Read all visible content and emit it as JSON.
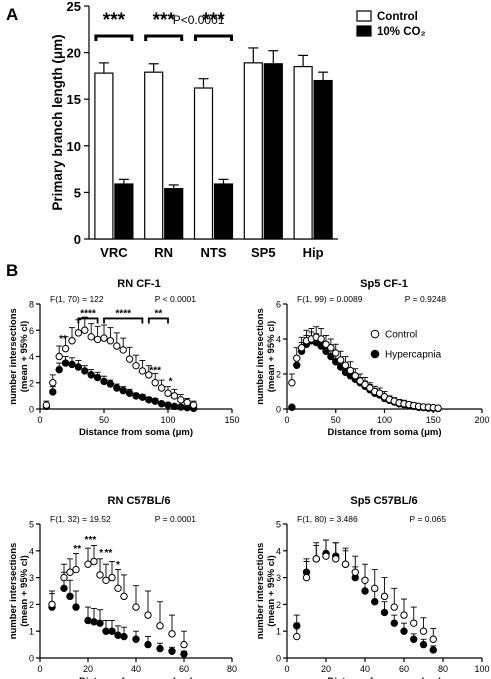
{
  "panels": {
    "a": "A",
    "b": "B"
  },
  "chart_data": [
    {
      "type": "bar",
      "id": "A",
      "ylabel": "Primary branch length (μm)",
      "ylim": [
        0,
        25
      ],
      "yticks": [
        0,
        5,
        10,
        15,
        20,
        25
      ],
      "categories": [
        "VRC",
        "RN",
        "NTS",
        "SP5",
        "Hip"
      ],
      "series": [
        {
          "name": "Control",
          "color": "#ffffff",
          "values": [
            17.8,
            17.9,
            16.2,
            18.9,
            18.5
          ],
          "errors": [
            1.1,
            0.9,
            1.0,
            1.6,
            1.2
          ]
        },
        {
          "name": "10% CO₂",
          "color": "#000000",
          "values": [
            5.9,
            5.4,
            5.9,
            18.8,
            17.0
          ],
          "errors": [
            0.5,
            0.4,
            0.5,
            1.4,
            0.9
          ]
        }
      ],
      "annotations": [
        {
          "text": "P<0.0001"
        },
        {
          "text": "***",
          "group": 0
        },
        {
          "text": "***",
          "group": 1
        },
        {
          "text": "***",
          "group": 2
        }
      ]
    },
    {
      "type": "scatter",
      "id": "rn_cf1",
      "title": "RN CF-1",
      "xlabel": "Distance from soma (μm)",
      "ylabel": [
        "number intersections",
        "(mean + 95% cl)"
      ],
      "xlim": [
        0,
        150
      ],
      "ylim": [
        0,
        8
      ],
      "xticks": [
        0,
        50,
        100,
        150
      ],
      "yticks": [
        0,
        2,
        4,
        6,
        8
      ],
      "stat_left": "F(1, 70) = 122",
      "stat_right": "P < 0.0001",
      "x": [
        5,
        10,
        15,
        20,
        25,
        30,
        35,
        40,
        45,
        50,
        55,
        60,
        65,
        70,
        75,
        80,
        85,
        90,
        95,
        100,
        105,
        110,
        115,
        120
      ],
      "series": [
        {
          "name": "Control",
          "values": [
            0.3,
            2.0,
            4.0,
            4.6,
            5.2,
            5.8,
            6.0,
            5.5,
            5.3,
            5.4,
            5.2,
            4.8,
            4.5,
            3.8,
            3.3,
            2.9,
            2.6,
            2.0,
            1.6,
            1.2,
            1.0,
            0.7,
            0.5,
            0.3
          ],
          "err": [
            0.3,
            0.6,
            0.8,
            0.9,
            1.0,
            1.0,
            1.0,
            1.0,
            1.0,
            1.0,
            1.0,
            1.0,
            0.9,
            0.9,
            0.8,
            0.8,
            0.7,
            0.7,
            0.6,
            0.5,
            0.5,
            0.4,
            0.3,
            0.3
          ]
        },
        {
          "name": "Hypercapnia",
          "values": [
            0.2,
            1.3,
            3.0,
            3.5,
            3.4,
            3.2,
            2.9,
            2.6,
            2.4,
            2.1,
            1.9,
            1.6,
            1.4,
            1.2,
            1.0,
            0.9,
            0.7,
            0.6,
            0.4,
            0.3,
            0.2,
            0.15,
            0.1,
            0.05
          ],
          "err": [
            0.2,
            0.4,
            0.5,
            0.5,
            0.5,
            0.5,
            0.4,
            0.4,
            0.4,
            0.4,
            0.3,
            0.3,
            0.3,
            0.3,
            0.2,
            0.2,
            0.2,
            0.2,
            0.1,
            0.1,
            0.1,
            0.1,
            0.1,
            0.05
          ]
        }
      ],
      "stars": [
        {
          "text": "**",
          "x": 18,
          "y": 5.1
        },
        {
          "text": "***",
          "x": 90,
          "y": 2.7
        },
        {
          "text": "*",
          "x": 102,
          "y": 1.85
        }
      ],
      "brackets": [
        {
          "text": "****",
          "x1": 30,
          "x2": 45,
          "y": 6.9
        },
        {
          "text": "****",
          "x1": 50,
          "x2": 80,
          "y": 6.9
        },
        {
          "text": "**",
          "x1": 85,
          "x2": 100,
          "y": 6.9
        }
      ]
    },
    {
      "type": "scatter",
      "id": "sp5_cf1",
      "title": "Sp5 CF-1",
      "xlabel": "Distance from soma (μm)",
      "ylabel": [
        "number intersections",
        "(mean + 95% cl)"
      ],
      "xlim": [
        0,
        200
      ],
      "ylim": [
        0,
        6
      ],
      "xticks": [
        0,
        50,
        100,
        150,
        200
      ],
      "yticks": [
        0,
        2,
        4,
        6
      ],
      "stat_left": "F(1, 99) = 0.0089",
      "stat_right": "P = 0.9248",
      "legend": [
        "Control",
        "Hypercapnia"
      ],
      "x": [
        5,
        10,
        15,
        20,
        25,
        30,
        35,
        40,
        45,
        50,
        55,
        60,
        65,
        70,
        75,
        80,
        85,
        90,
        95,
        100,
        105,
        110,
        115,
        120,
        125,
        130,
        135,
        140,
        145,
        150,
        155
      ],
      "series": [
        {
          "name": "Control",
          "values": [
            1.5,
            2.9,
            3.5,
            3.9,
            4.0,
            4.1,
            4.0,
            3.7,
            3.5,
            3.2,
            2.8,
            2.5,
            2.2,
            1.9,
            1.6,
            1.4,
            1.2,
            1.0,
            0.9,
            0.7,
            0.55,
            0.45,
            0.35,
            0.3,
            0.25,
            0.2,
            0.15,
            0.12,
            0.1,
            0.08,
            0.05
          ],
          "err": [
            0.5,
            0.6,
            0.6,
            0.6,
            0.6,
            0.6,
            0.6,
            0.5,
            0.5,
            0.5,
            0.5,
            0.5,
            0.5,
            0.4,
            0.4,
            0.4,
            0.3,
            0.3,
            0.3,
            0.3,
            0.2,
            0.2,
            0.2,
            0.2,
            0.15,
            0.15,
            0.1,
            0.1,
            0.1,
            0.08,
            0.05
          ]
        },
        {
          "name": "Hypercapnia",
          "values": [
            0.1,
            2.5,
            3.3,
            3.7,
            3.9,
            3.8,
            3.6,
            3.3,
            3.0,
            2.7,
            2.4,
            2.1,
            1.9,
            1.7,
            1.5,
            1.3,
            1.1,
            0.9,
            0.8,
            0.6,
            0.5,
            0.4,
            0.3,
            0.25,
            0.2,
            0.15,
            0.1,
            0.08,
            0.05,
            0.04,
            0.03
          ],
          "err": [
            0.1,
            0.4,
            0.5,
            0.5,
            0.5,
            0.5,
            0.5,
            0.5,
            0.4,
            0.4,
            0.4,
            0.4,
            0.3,
            0.3,
            0.3,
            0.3,
            0.3,
            0.2,
            0.2,
            0.2,
            0.2,
            0.15,
            0.1,
            0.1,
            0.1,
            0.08,
            0.06,
            0.05,
            0.04,
            0.03,
            0.03
          ]
        }
      ]
    },
    {
      "type": "scatter",
      "id": "rn_c57",
      "title": "RN C57BL/6",
      "xlabel": "Distance from soma (μm)",
      "ylabel": [
        "number intersections",
        "(mean + 95% cl)"
      ],
      "xlim": [
        0,
        80
      ],
      "ylim": [
        0,
        5
      ],
      "xticks": [
        0,
        20,
        40,
        60,
        80
      ],
      "yticks": [
        0,
        1,
        2,
        3,
        4,
        5
      ],
      "stat_left": "F(1, 32) = 19.52",
      "stat_right": "P = 0.0001",
      "x": [
        5,
        10,
        12.5,
        15,
        20,
        22.5,
        25,
        27.5,
        30,
        32.5,
        35,
        40,
        45,
        50,
        55,
        60
      ],
      "series": [
        {
          "name": "Control",
          "values": [
            2.0,
            3.0,
            3.2,
            3.3,
            3.5,
            3.6,
            3.1,
            2.9,
            3.0,
            2.6,
            2.3,
            1.9,
            1.6,
            1.2,
            0.9,
            0.5
          ],
          "err": [
            0.5,
            0.5,
            0.5,
            0.6,
            0.6,
            0.6,
            0.6,
            0.6,
            0.6,
            0.7,
            0.8,
            0.8,
            0.9,
            0.9,
            0.7,
            0.5
          ]
        },
        {
          "name": "Hypercapnia",
          "values": [
            1.9,
            2.6,
            2.3,
            1.9,
            1.4,
            1.35,
            1.3,
            1.0,
            1.0,
            0.85,
            0.8,
            0.7,
            0.5,
            0.35,
            0.25,
            0.15
          ],
          "err": [
            0.5,
            0.6,
            0.6,
            0.6,
            0.5,
            0.5,
            0.5,
            0.4,
            0.4,
            0.35,
            0.35,
            0.3,
            0.3,
            0.2,
            0.15,
            0.1
          ]
        }
      ],
      "stars": [
        {
          "text": "**",
          "x": 15.5,
          "y": 3.95
        },
        {
          "text": "***",
          "x": 21,
          "y": 4.3
        },
        {
          "text": "*",
          "x": 25.5,
          "y": 3.8
        },
        {
          "text": "**",
          "x": 28.5,
          "y": 3.8
        },
        {
          "text": "*",
          "x": 32.5,
          "y": 3.35
        }
      ]
    },
    {
      "type": "scatter",
      "id": "sp5_c57",
      "title": "Sp5 C57BL/6",
      "xlabel": "Distance from soma (μm)",
      "ylabel": [
        "number intersections",
        "(mean + 95% cl)"
      ],
      "xlim": [
        0,
        100
      ],
      "ylim": [
        0,
        5
      ],
      "xticks": [
        0,
        20,
        40,
        60,
        80,
        100
      ],
      "yticks": [
        0,
        1,
        2,
        3,
        4,
        5
      ],
      "stat_left": "F(1, 80) = 3.486",
      "stat_right": "P = 0.065",
      "x": [
        5,
        10,
        15,
        20,
        25,
        30,
        35,
        40,
        45,
        50,
        55,
        60,
        65,
        70,
        75
      ],
      "series": [
        {
          "name": "Control",
          "values": [
            0.8,
            3.0,
            3.7,
            3.8,
            3.7,
            3.5,
            3.2,
            2.9,
            2.6,
            2.3,
            1.9,
            1.6,
            1.3,
            1.0,
            0.7
          ],
          "err": [
            0.5,
            0.6,
            0.6,
            0.6,
            0.6,
            0.6,
            0.6,
            0.6,
            0.7,
            0.7,
            0.7,
            0.6,
            0.6,
            0.5,
            0.4
          ]
        },
        {
          "name": "Hypercapnia",
          "values": [
            1.2,
            3.2,
            3.7,
            3.9,
            3.8,
            3.5,
            3.0,
            2.5,
            2.1,
            1.7,
            1.3,
            1.0,
            0.7,
            0.5,
            0.3
          ],
          "err": [
            0.4,
            0.5,
            0.5,
            0.5,
            0.5,
            0.5,
            0.4,
            0.4,
            0.4,
            0.4,
            0.3,
            0.3,
            0.2,
            0.2,
            0.15
          ]
        }
      ]
    }
  ]
}
